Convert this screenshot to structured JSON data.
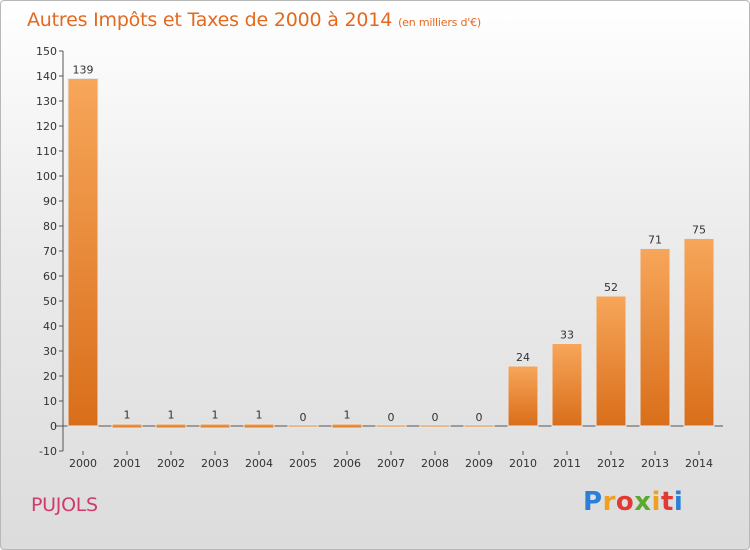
{
  "header": {
    "title": "Autres Impôts et Taxes de 2000 à 2014",
    "unit": "(en milliers d'€)"
  },
  "footer": {
    "place": "PUJOLS",
    "logo": "Proxiti"
  },
  "colors": {
    "bar_light": "#f7a65a",
    "bar_dark": "#d96e1a",
    "title": "#e5681f",
    "place": "#d13a6a"
  },
  "chart_data": {
    "type": "bar",
    "title": "Autres Impôts et Taxes de 2000 à 2014",
    "subtitle": "(en milliers d'€)",
    "categories": [
      "2000",
      "2001",
      "2002",
      "2003",
      "2004",
      "2005",
      "2006",
      "2007",
      "2008",
      "2009",
      "2010",
      "2011",
      "2012",
      "2013",
      "2014"
    ],
    "values": [
      139,
      1,
      1,
      1,
      1,
      0,
      1,
      0,
      0,
      0,
      24,
      33,
      52,
      71,
      75
    ],
    "data_labels": [
      "139",
      "1",
      "1",
      "1",
      "1",
      "0",
      "1",
      "0",
      "0",
      "0",
      "24",
      "33",
      "52",
      "71",
      "75"
    ],
    "ylim": [
      -10,
      150
    ],
    "yticks": [
      -10,
      0,
      10,
      20,
      30,
      40,
      50,
      60,
      70,
      80,
      90,
      100,
      110,
      120,
      130,
      140,
      150
    ],
    "grid": false,
    "legend": "none"
  }
}
